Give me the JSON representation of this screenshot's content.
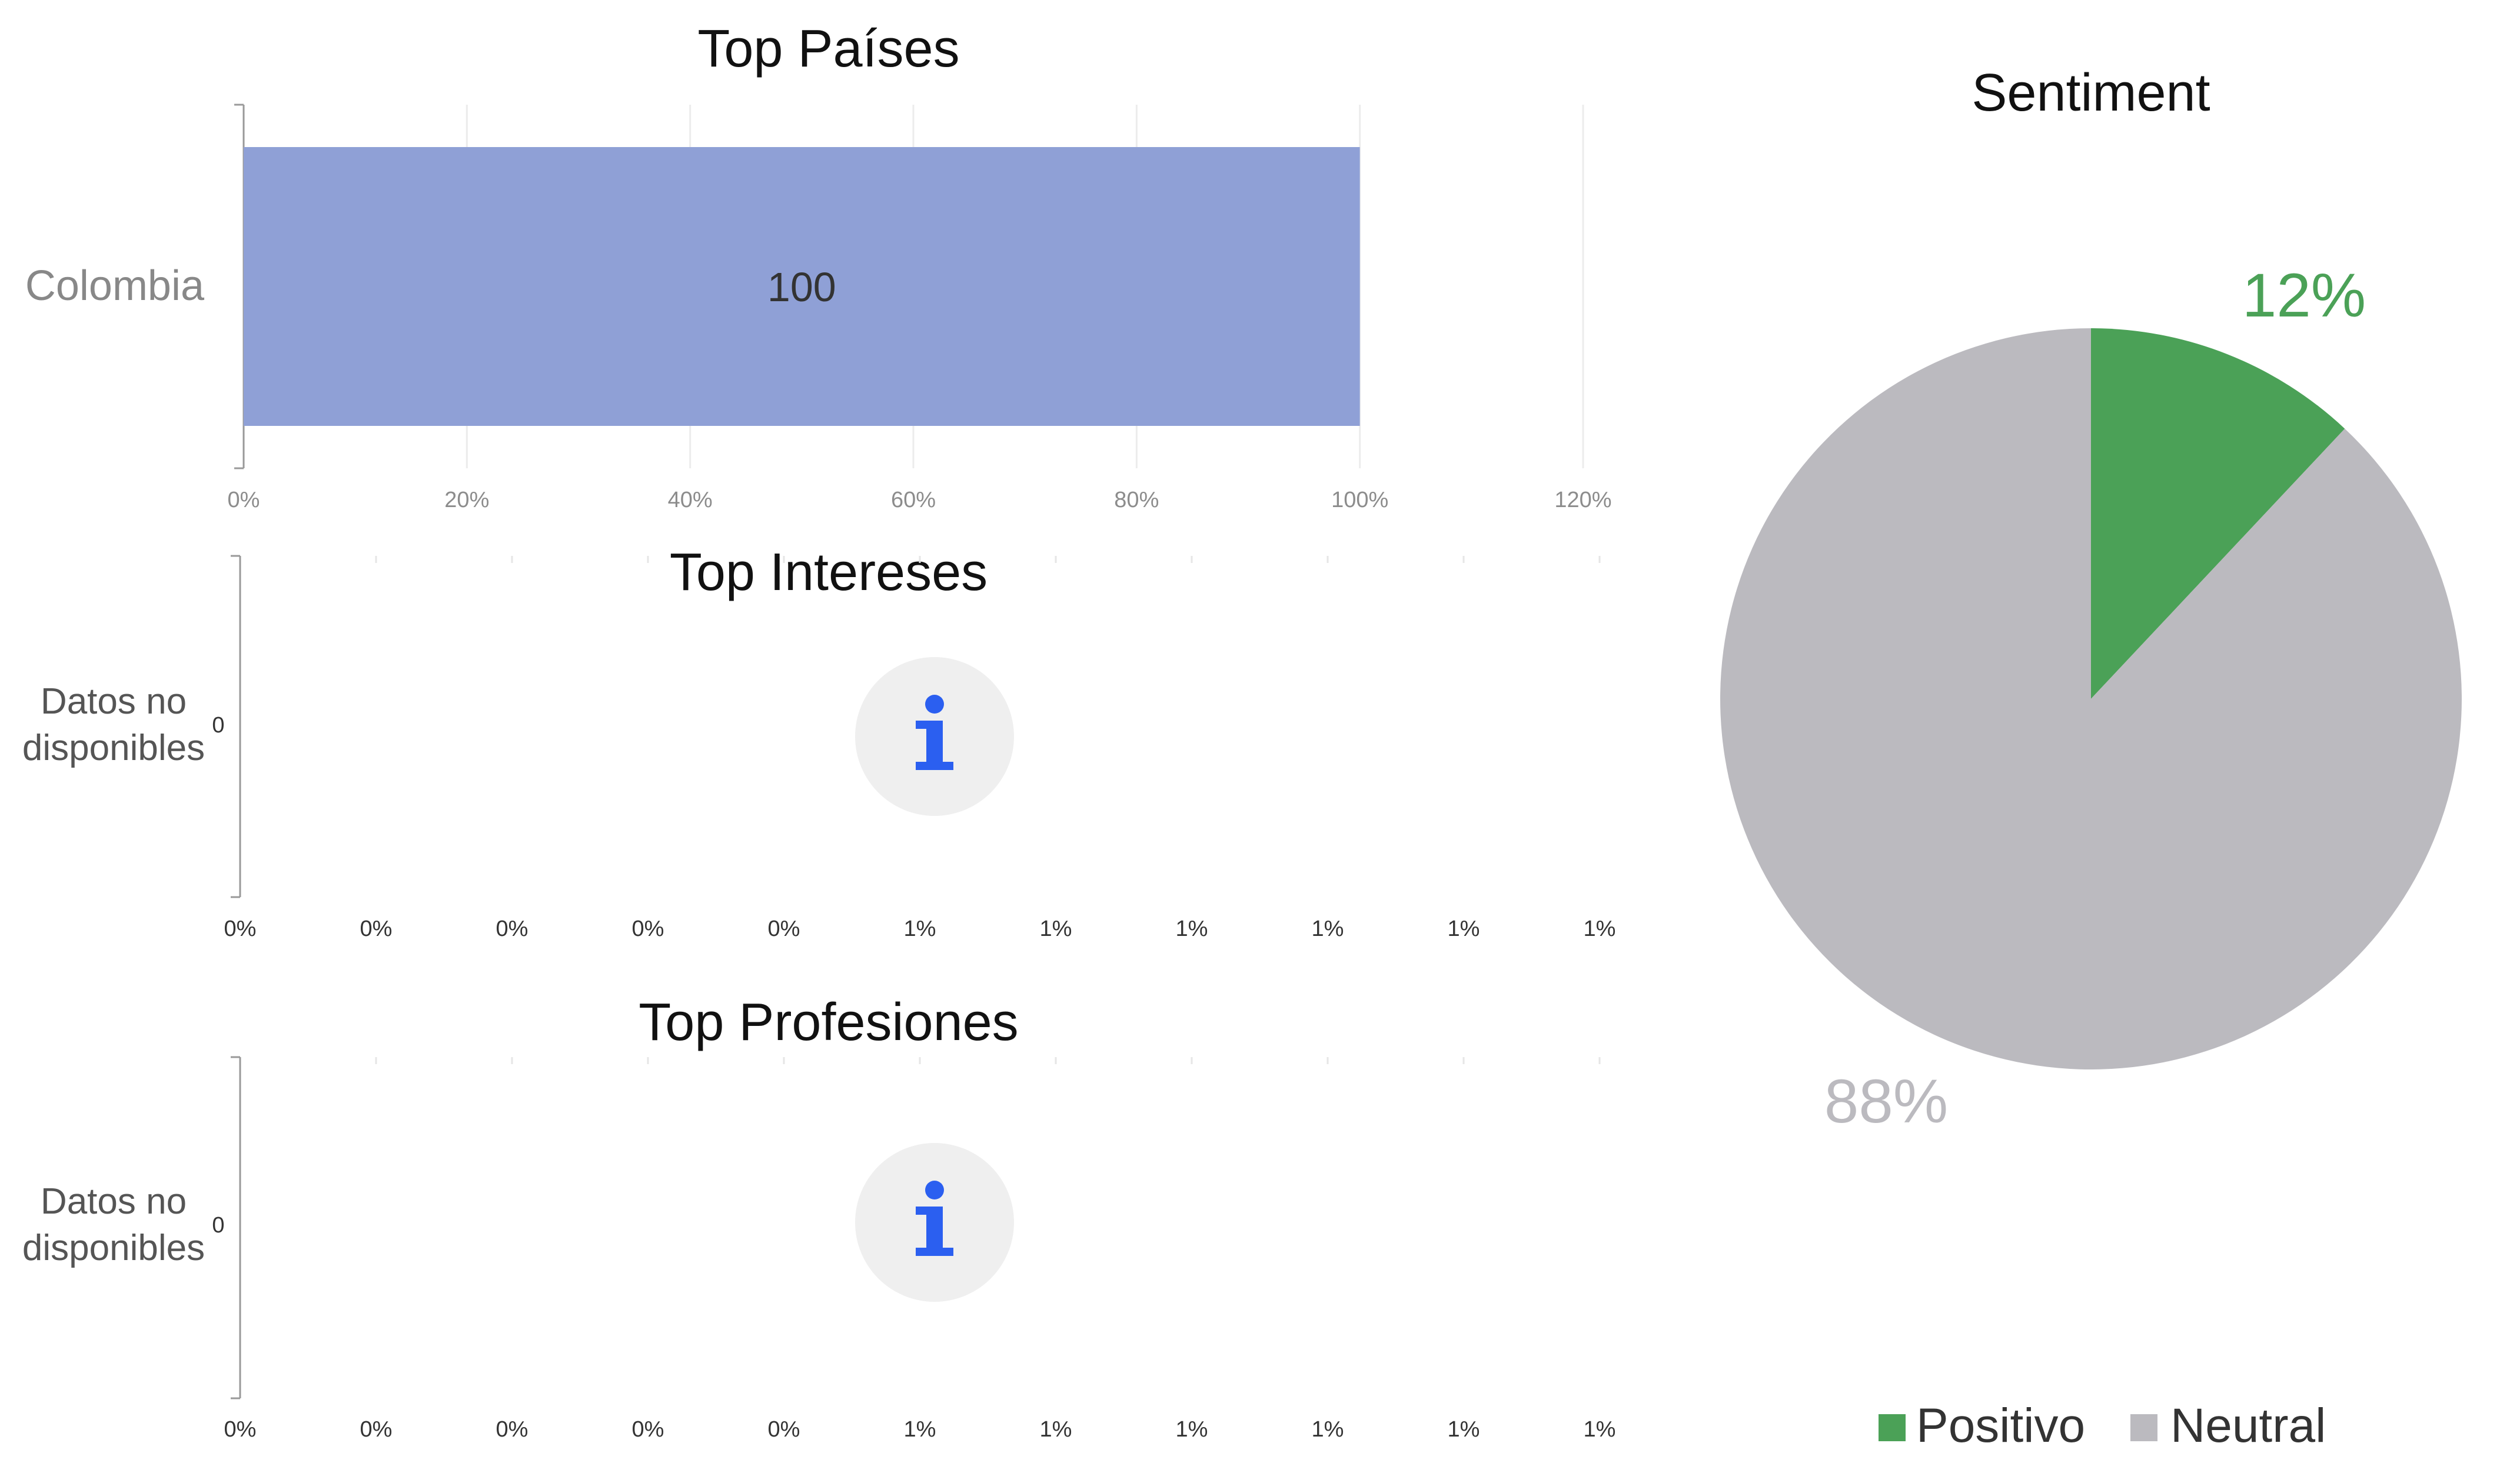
{
  "chart_data": [
    {
      "type": "bar",
      "orientation": "horizontal",
      "title": "Top Países",
      "categories": [
        "Colombia"
      ],
      "values": [
        100
      ],
      "data_labels": [
        "100"
      ],
      "x_ticks": [
        "0%",
        "20%",
        "40%",
        "60%",
        "80%",
        "100%",
        "120%"
      ],
      "xlim": [
        0,
        120
      ],
      "grid": true,
      "bar_color": "#8fa0d6"
    },
    {
      "type": "bar",
      "orientation": "horizontal",
      "title": "Top Intereses",
      "categories": [
        "Datos no disponibles"
      ],
      "values": [
        0
      ],
      "data_labels": [
        "0"
      ],
      "x_ticks": [
        "0%",
        "0%",
        "0%",
        "0%",
        "0%",
        "1%",
        "1%",
        "1%",
        "1%",
        "1%",
        "1%"
      ],
      "empty_icon": "info-icon"
    },
    {
      "type": "bar",
      "orientation": "horizontal",
      "title": "Top Profesiones",
      "categories": [
        "Datos no disponibles"
      ],
      "values": [
        0
      ],
      "data_labels": [
        "0"
      ],
      "x_ticks": [
        "0%",
        "0%",
        "0%",
        "0%",
        "0%",
        "1%",
        "1%",
        "1%",
        "1%",
        "1%",
        "1%"
      ],
      "empty_icon": "info-icon"
    },
    {
      "type": "pie",
      "title": "Sentiment",
      "slices": [
        {
          "name": "Positivo",
          "value": 12,
          "label": "12%",
          "color": "#4ba157"
        },
        {
          "name": "Neutral",
          "value": 88,
          "label": "88%",
          "color": "#bbbabf"
        }
      ],
      "legend_position": "bottom"
    }
  ]
}
